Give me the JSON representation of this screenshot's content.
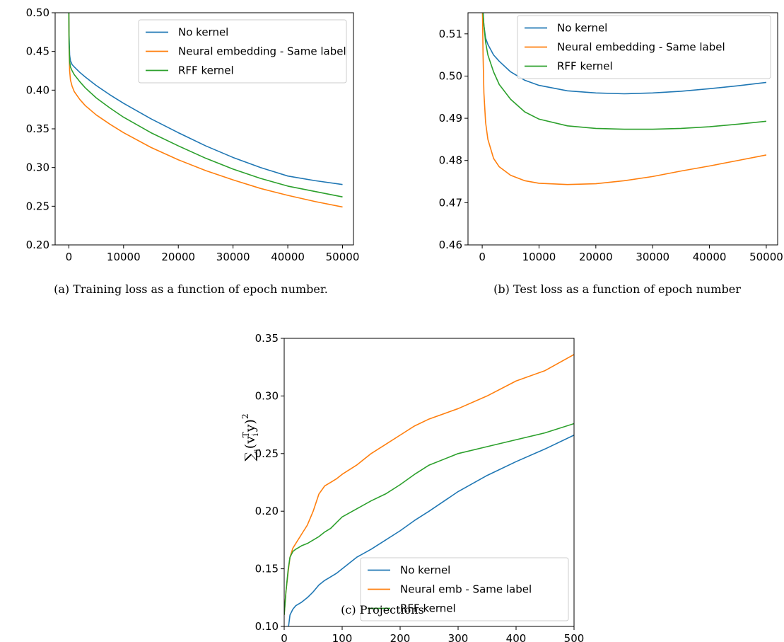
{
  "chart_data": [
    {
      "type": "line",
      "caption": "(a) Training loss as a function of epoch number.",
      "title": "",
      "xlabel": "",
      "ylabel": "",
      "xlim": [
        -2500,
        52000
      ],
      "ylim": [
        0.2,
        0.5
      ],
      "xticks": [
        0,
        10000,
        20000,
        30000,
        40000,
        50000
      ],
      "yticks": [
        0.2,
        0.25,
        0.3,
        0.35,
        0.4,
        0.45,
        0.5
      ],
      "ytick_decimals": 2,
      "legend": "top-right",
      "grid": false,
      "x": [
        0,
        50,
        150,
        300,
        600,
        1000,
        2000,
        3000,
        5000,
        7500,
        10000,
        15000,
        20000,
        25000,
        30000,
        35000,
        40000,
        45000,
        50000
      ],
      "series": [
        {
          "name": "No kernel",
          "color": "#1f77b4",
          "values": [
            0.5,
            0.47,
            0.445,
            0.438,
            0.433,
            0.43,
            0.423,
            0.417,
            0.406,
            0.394,
            0.383,
            0.363,
            0.345,
            0.328,
            0.313,
            0.3,
            0.289,
            0.283,
            0.278
          ]
        },
        {
          "name": "Neural embedding - Same label",
          "color": "#ff7f0e",
          "values": [
            0.5,
            0.455,
            0.425,
            0.413,
            0.405,
            0.398,
            0.388,
            0.38,
            0.368,
            0.356,
            0.345,
            0.326,
            0.31,
            0.296,
            0.284,
            0.273,
            0.264,
            0.256,
            0.249
          ]
        },
        {
          "name": "RFF kernel",
          "color": "#2ca02c",
          "values": [
            0.5,
            0.46,
            0.437,
            0.43,
            0.425,
            0.42,
            0.411,
            0.403,
            0.39,
            0.377,
            0.365,
            0.345,
            0.328,
            0.312,
            0.298,
            0.286,
            0.276,
            0.269,
            0.262
          ]
        }
      ]
    },
    {
      "type": "line",
      "caption": "(b) Test loss as a function of epoch number",
      "title": "",
      "xlabel": "",
      "ylabel": "",
      "xlim": [
        -2500,
        52000
      ],
      "ylim": [
        0.46,
        0.515
      ],
      "xticks": [
        0,
        10000,
        20000,
        30000,
        40000,
        50000
      ],
      "yticks": [
        0.46,
        0.47,
        0.48,
        0.49,
        0.5,
        0.51
      ],
      "ytick_decimals": 2,
      "legend": "top-right",
      "grid": false,
      "x": [
        0,
        150,
        300,
        600,
        1000,
        2000,
        3000,
        5000,
        7500,
        10000,
        15000,
        20000,
        25000,
        30000,
        35000,
        40000,
        45000,
        50000
      ],
      "series": [
        {
          "name": "No kernel",
          "color": "#1f77b4",
          "values": [
            0.52,
            0.515,
            0.512,
            0.509,
            0.5075,
            0.505,
            0.5035,
            0.501,
            0.499,
            0.4978,
            0.4965,
            0.496,
            0.4958,
            0.496,
            0.4964,
            0.497,
            0.4977,
            0.4985
          ]
        },
        {
          "name": "Neural embedding - Same label",
          "color": "#ff7f0e",
          "values": [
            0.52,
            0.505,
            0.496,
            0.489,
            0.485,
            0.4805,
            0.4785,
            0.4765,
            0.4752,
            0.4746,
            0.4743,
            0.4745,
            0.4752,
            0.4762,
            0.4775,
            0.4787,
            0.48,
            0.4813
          ]
        },
        {
          "name": "RFF kernel",
          "color": "#2ca02c",
          "values": [
            0.52,
            0.515,
            0.512,
            0.508,
            0.505,
            0.501,
            0.498,
            0.4945,
            0.4915,
            0.4898,
            0.4882,
            0.4876,
            0.4874,
            0.4874,
            0.4876,
            0.488,
            0.4886,
            0.4893
          ]
        }
      ]
    },
    {
      "type": "line",
      "caption": "(c) Projections",
      "title": "",
      "xlabel": "",
      "ylabel": "∑",
      "ylabel_sub": "i",
      "ylabel_expr": "(v",
      "ylabel_expr_sub": "i",
      "ylabel_expr_sup": "T",
      "ylabel_expr_tail": "y)",
      "ylabel_expr_sup2": "2",
      "xlim": [
        0,
        500
      ],
      "ylim": [
        0.1,
        0.35
      ],
      "xticks": [
        0,
        100,
        200,
        300,
        400,
        500
      ],
      "yticks": [
        0.1,
        0.15,
        0.2,
        0.25,
        0.3,
        0.35
      ],
      "ytick_decimals": 2,
      "legend": "lower-right",
      "grid": false,
      "x": [
        0,
        3,
        7,
        10,
        15,
        20,
        30,
        40,
        50,
        60,
        70,
        80,
        90,
        100,
        125,
        150,
        175,
        200,
        225,
        250,
        300,
        350,
        400,
        450,
        500
      ],
      "series": [
        {
          "name": "No kernel",
          "color": "#1f77b4",
          "values": [
            0.08,
            0.09,
            0.098,
            0.11,
            0.115,
            0.118,
            0.121,
            0.125,
            0.13,
            0.136,
            0.14,
            0.143,
            0.146,
            0.15,
            0.16,
            0.167,
            0.175,
            0.183,
            0.192,
            0.2,
            0.217,
            0.231,
            0.243,
            0.254,
            0.266
          ]
        },
        {
          "name": "Neural emb - Same label",
          "color": "#ff7f0e",
          "values": [
            0.11,
            0.13,
            0.148,
            0.16,
            0.168,
            0.172,
            0.18,
            0.188,
            0.2,
            0.215,
            0.222,
            0.225,
            0.228,
            0.232,
            0.24,
            0.25,
            0.258,
            0.266,
            0.274,
            0.28,
            0.289,
            0.3,
            0.313,
            0.322,
            0.336
          ]
        },
        {
          "name": "RFF kernel",
          "color": "#2ca02c",
          "values": [
            0.11,
            0.13,
            0.15,
            0.16,
            0.165,
            0.167,
            0.17,
            0.172,
            0.175,
            0.178,
            0.182,
            0.185,
            0.19,
            0.195,
            0.202,
            0.209,
            0.215,
            0.223,
            0.232,
            0.24,
            0.25,
            0.256,
            0.262,
            0.268,
            0.276
          ]
        }
      ]
    }
  ]
}
